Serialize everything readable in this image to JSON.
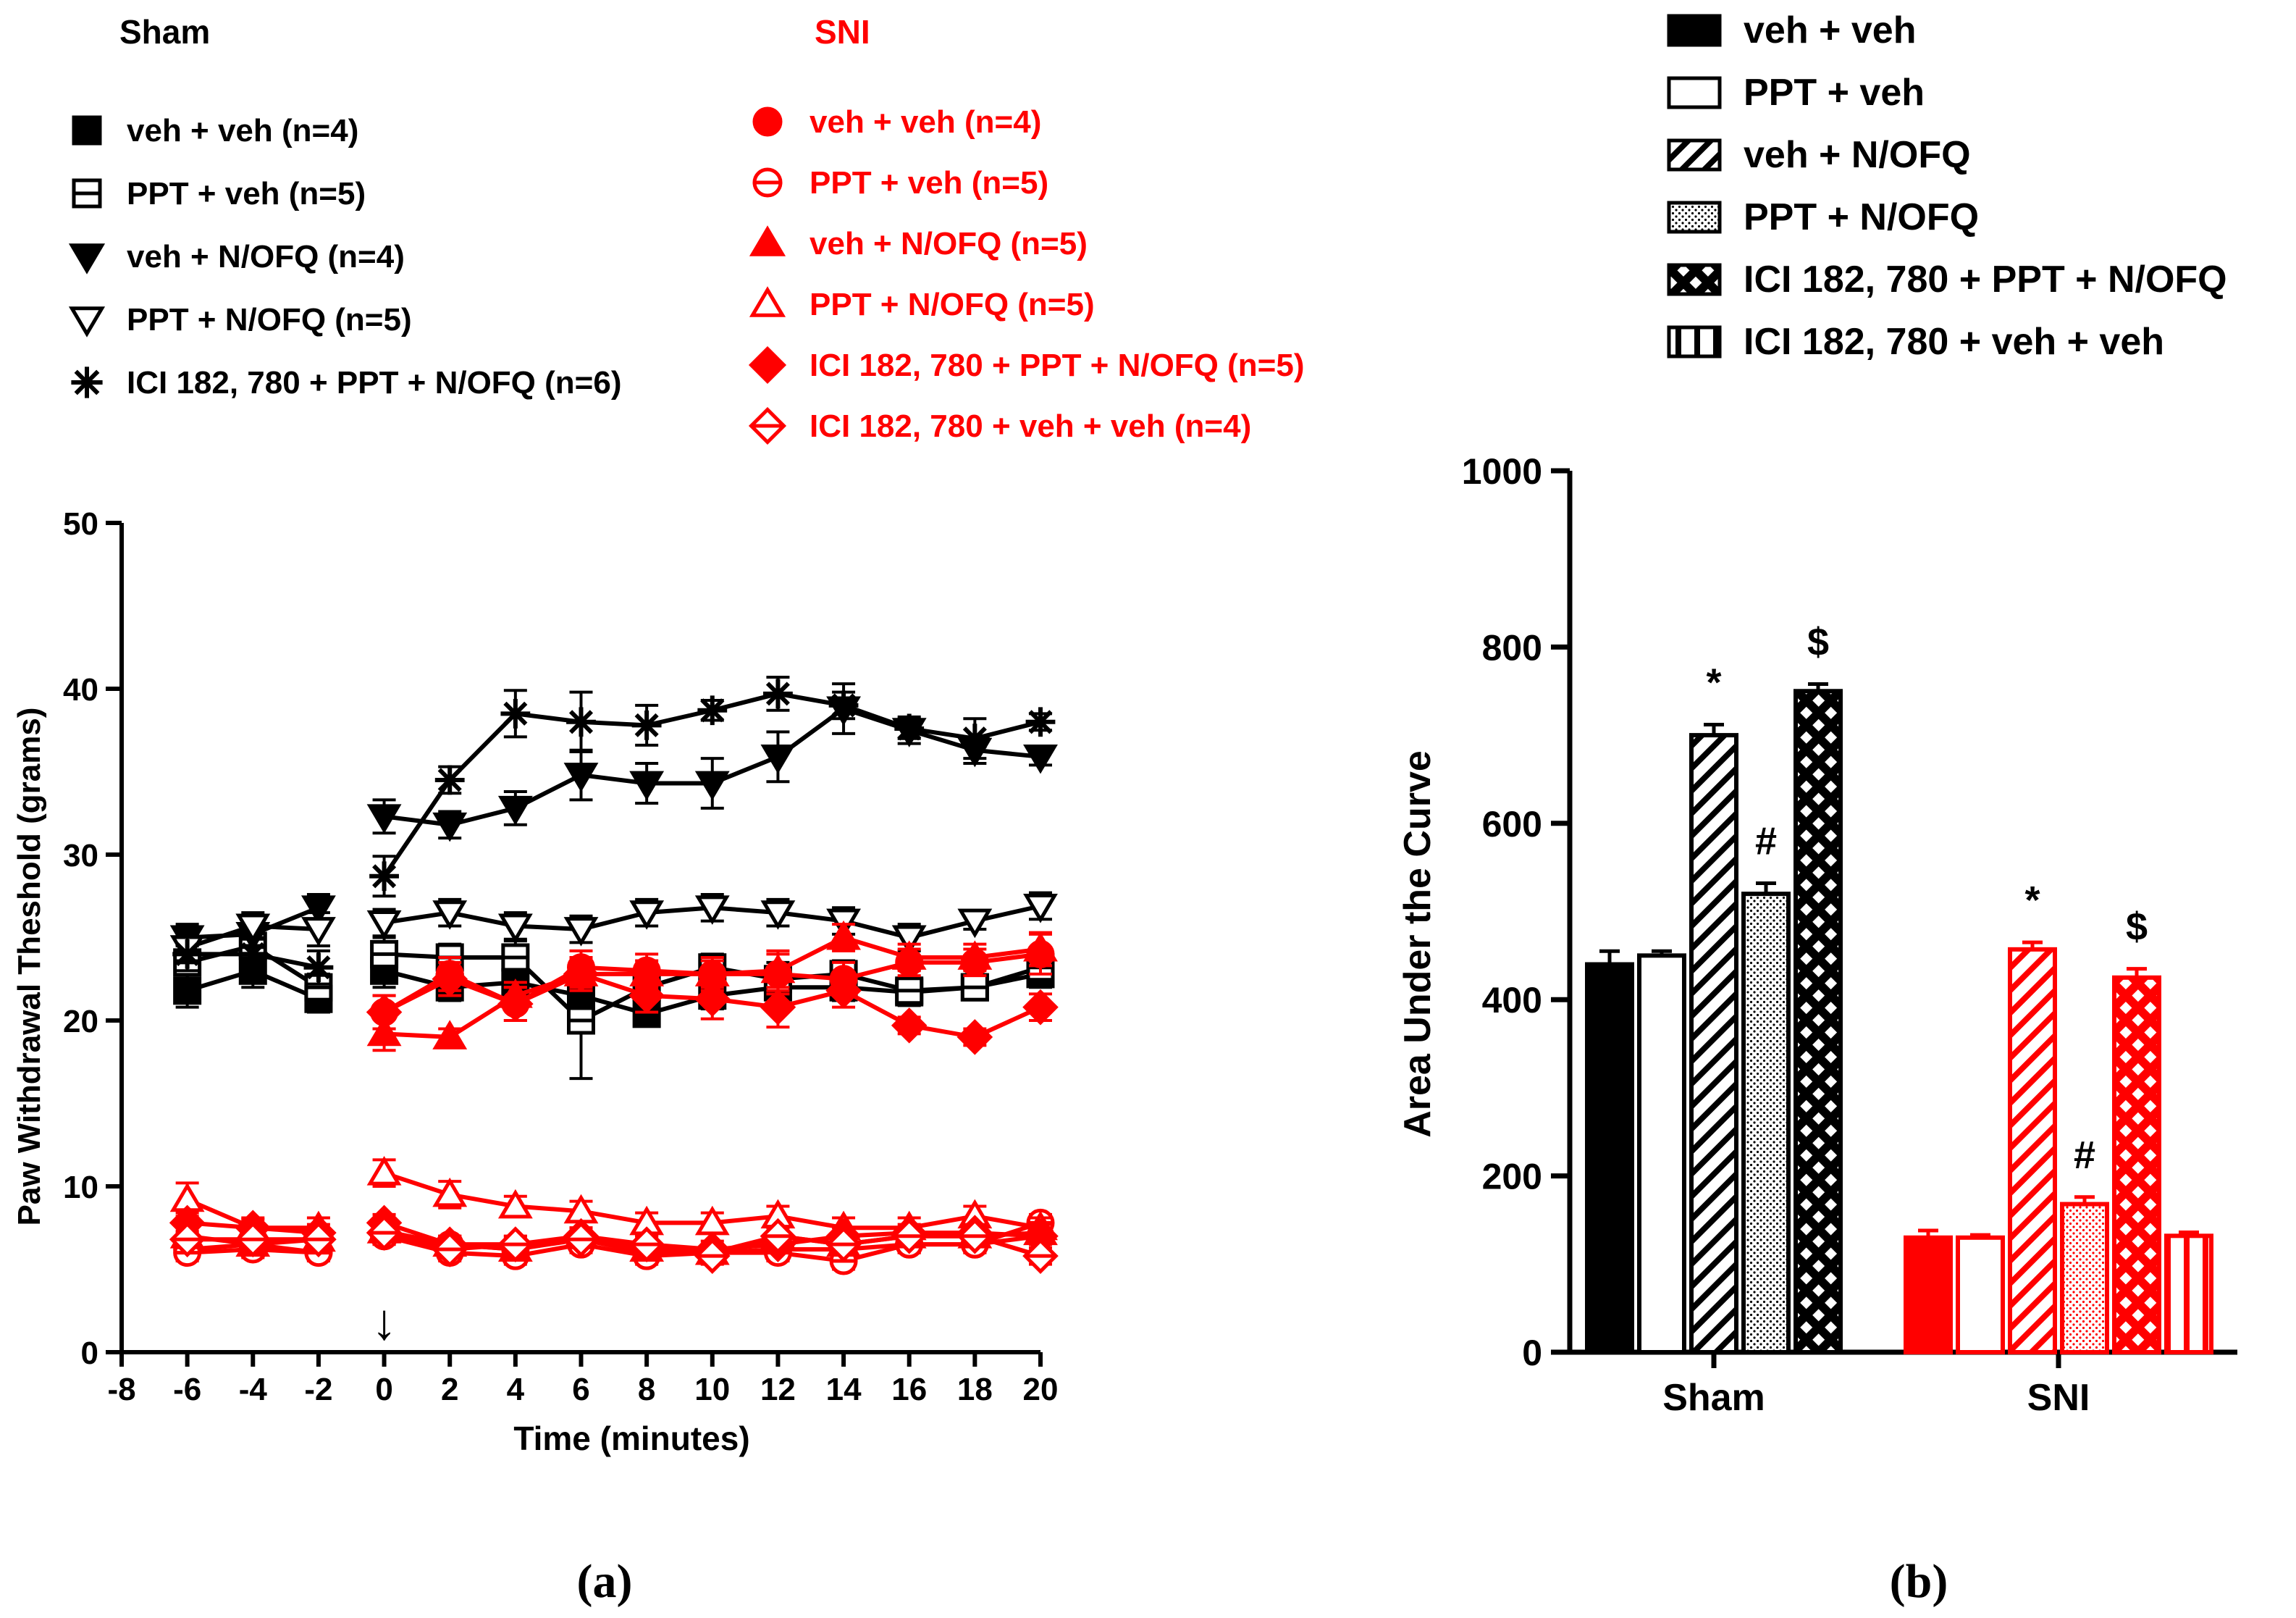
{
  "colors": {
    "sham": "#000000",
    "sni": "#ff0000",
    "background": "#ffffff"
  },
  "legend_a": {
    "sham_title": "Sham",
    "sni_title": "SNI",
    "sham_entries": [
      {
        "label": "veh + veh (n=4)",
        "marker": "filled-square-icon"
      },
      {
        "label": "PPT + veh (n=5)",
        "marker": "crossed-square-icon"
      },
      {
        "label": "veh + N/OFQ (n=4)",
        "marker": "filled-down-triangle-icon"
      },
      {
        "label": "PPT + N/OFQ (n=5)",
        "marker": "open-down-triangle-icon"
      },
      {
        "label": "ICI 182, 780 + PPT + N/OFQ (n=6)",
        "marker": "asterisk-icon"
      }
    ],
    "sni_entries": [
      {
        "label": "veh + veh (n=4)",
        "marker": "filled-circle-icon"
      },
      {
        "label": "PPT + veh (n=5)",
        "marker": "crossed-circle-icon"
      },
      {
        "label": "veh + N/OFQ (n=5)",
        "marker": "filled-up-triangle-icon"
      },
      {
        "label": "PPT + N/OFQ (n=5)",
        "marker": "open-up-triangle-icon"
      },
      {
        "label": "ICI 182, 780 + PPT + N/OFQ (n=5)",
        "marker": "filled-diamond-icon"
      },
      {
        "label": "ICI 182, 780 + veh + veh (n=4)",
        "marker": "crossed-diamond-icon"
      }
    ]
  },
  "legend_b": {
    "entries": [
      {
        "label": "veh + veh",
        "pattern": "solid"
      },
      {
        "label": "PPT + veh",
        "pattern": "open"
      },
      {
        "label": "veh + N/OFQ",
        "pattern": "diagonal-stripes"
      },
      {
        "label": "PPT + N/OFQ",
        "pattern": "dots"
      },
      {
        "label": "ICI 182, 780 + PPT + N/OFQ",
        "pattern": "crosshatch"
      },
      {
        "label": "ICI 182, 780 + veh + veh",
        "pattern": "vertical-stripes"
      }
    ]
  },
  "panel_labels": {
    "a": "(a)",
    "b": "(b)"
  },
  "chart_data": [
    {
      "id": "a",
      "type": "line",
      "title": "",
      "xlabel": "Time (minutes)",
      "ylabel": "Paw Withdrawal Theshold (grams)",
      "xlim": [
        -8,
        20
      ],
      "ylim": [
        0,
        50
      ],
      "xticks": [
        -8,
        -6,
        -4,
        -2,
        0,
        2,
        4,
        6,
        8,
        10,
        12,
        14,
        16,
        18,
        20
      ],
      "yticks": [
        0,
        10,
        20,
        30,
        40,
        50
      ],
      "annotation": {
        "text": "↓",
        "x": 0,
        "meaning": "injection arrow at time 0"
      },
      "segments_break_between": [
        -2,
        0
      ],
      "x": [
        -6,
        -4,
        -2,
        0,
        2,
        4,
        6,
        8,
        10,
        12,
        14,
        16,
        18,
        20
      ],
      "series": [
        {
          "name": "Sham veh + veh (n=4)",
          "group": "sham",
          "marker": "square-filled",
          "values": [
            21.8,
            23.0,
            21.3,
            23.0,
            22.0,
            22.3,
            21.5,
            20.4,
            21.5,
            22.0,
            22.0,
            21.7,
            22.0,
            22.8
          ],
          "errors": [
            1.0,
            1.0,
            0.8,
            1.0,
            0.8,
            1.0,
            0.8,
            0.5,
            0.8,
            0.8,
            0.8,
            0.8,
            0.5,
            0.8
          ]
        },
        {
          "name": "Sham PPT + veh (n=5)",
          "group": "sham",
          "marker": "square-crossed",
          "values": [
            23.5,
            24.5,
            22.0,
            24.0,
            23.8,
            23.8,
            20.0,
            22.0,
            23.2,
            22.5,
            22.8,
            21.8,
            22.0,
            23.2
          ],
          "errors": [
            1.0,
            1.0,
            0.8,
            1.0,
            0.8,
            1.0,
            3.5,
            0.8,
            0.8,
            1.0,
            0.8,
            0.8,
            0.5,
            0.8
          ]
        },
        {
          "name": "Sham veh + N/OFQ (n=4)",
          "group": "sham",
          "marker": "triangle-down-filled",
          "values": [
            25.0,
            25.2,
            26.8,
            32.3,
            31.8,
            32.8,
            34.8,
            34.3,
            34.3,
            35.9,
            38.8,
            37.5,
            36.3,
            35.9
          ],
          "errors": [
            0.8,
            0.8,
            0.8,
            1.0,
            0.8,
            1.0,
            1.5,
            1.2,
            1.5,
            1.5,
            1.5,
            0.8,
            0.8,
            0.5
          ]
        },
        {
          "name": "Sham PPT + N/OFQ (n=5)",
          "group": "sham",
          "marker": "triangle-down-open",
          "values": [
            24.4,
            25.7,
            25.5,
            25.9,
            26.5,
            25.7,
            25.5,
            26.5,
            26.8,
            26.5,
            26.0,
            25.0,
            26.0,
            26.9
          ],
          "errors": [
            0.8,
            0.8,
            1.0,
            0.8,
            0.8,
            0.8,
            0.8,
            0.8,
            0.8,
            0.8,
            0.8,
            0.8,
            0.5,
            0.8
          ]
        },
        {
          "name": "Sham ICI 182, 780 + PPT + N/OFQ (n=6)",
          "group": "sham",
          "marker": "asterisk",
          "values": [
            24.0,
            24.0,
            23.2,
            28.7,
            34.5,
            38.5,
            38.0,
            37.8,
            38.7,
            39.7,
            39.0,
            37.6,
            37.0,
            38.0
          ],
          "errors": [
            1.0,
            1.0,
            1.0,
            1.2,
            0.8,
            1.4,
            1.8,
            1.2,
            0.6,
            1.0,
            0.8,
            0.6,
            1.2,
            0.5
          ]
        },
        {
          "name": "SNI veh + veh (n=4)",
          "group": "sni",
          "marker": "circle-filled",
          "values": [
            6.2,
            6.5,
            6.0,
            7.0,
            6.5,
            6.2,
            6.8,
            6.0,
            6.0,
            6.2,
            6.2,
            6.5,
            6.5,
            7.0
          ],
          "errors": [
            0.5,
            0.5,
            0.5,
            0.5,
            0.5,
            0.5,
            0.5,
            0.5,
            0.5,
            0.5,
            0.5,
            0.5,
            0.5,
            0.5
          ]
        },
        {
          "name": "SNI PPT + veh (n=5)",
          "group": "sni",
          "marker": "circle-crossed",
          "values": [
            6.0,
            6.2,
            6.0,
            7.0,
            6.0,
            5.8,
            6.5,
            5.8,
            6.0,
            6.0,
            5.5,
            6.5,
            6.5,
            7.8
          ],
          "errors": [
            0.5,
            0.5,
            0.5,
            0.5,
            0.5,
            0.5,
            0.5,
            0.5,
            0.5,
            0.5,
            0.5,
            0.5,
            0.5,
            0.5
          ]
        },
        {
          "name": "SNI veh + N/OFQ (n=5)",
          "group": "sni",
          "marker": "triangle-up-filled",
          "values": [
            7.0,
            6.5,
            6.8,
            7.3,
            6.5,
            6.2,
            7.0,
            6.2,
            6.0,
            7.0,
            6.5,
            7.0,
            7.0,
            7.2
          ],
          "errors": [
            0.5,
            0.5,
            0.5,
            0.5,
            0.5,
            0.5,
            0.5,
            0.5,
            0.5,
            0.5,
            0.5,
            0.5,
            0.5,
            0.5
          ]
        },
        {
          "name": "SNI PPT + N/OFQ (n=5)",
          "group": "sni",
          "marker": "triangle-up-open",
          "values": [
            9.2,
            7.5,
            7.5,
            10.8,
            9.5,
            8.8,
            8.5,
            7.8,
            7.8,
            8.2,
            7.5,
            7.5,
            8.2,
            7.5
          ],
          "errors": [
            1.0,
            0.6,
            0.6,
            0.8,
            0.8,
            0.6,
            0.6,
            0.6,
            0.6,
            0.6,
            0.6,
            0.6,
            0.6,
            0.6
          ]
        },
        {
          "name": "SNI ICI 182, 780 + PPT + N/OFQ (n=5)",
          "group": "sni",
          "marker": "diamond-filled",
          "values": [
            7.8,
            7.5,
            7.2,
            7.8,
            6.5,
            6.5,
            7.0,
            6.5,
            6.2,
            6.5,
            7.0,
            7.2,
            7.2,
            7.0
          ],
          "errors": [
            0.6,
            0.5,
            0.5,
            0.5,
            0.5,
            0.5,
            0.5,
            0.5,
            0.5,
            0.5,
            0.5,
            0.5,
            0.5,
            0.5
          ]
        },
        {
          "name": "SNI ICI 182, 780 + veh + veh (n=4)",
          "group": "sni",
          "marker": "diamond-crossed",
          "values": [
            6.8,
            6.8,
            6.8,
            7.2,
            6.2,
            6.5,
            6.8,
            6.5,
            5.8,
            7.0,
            6.5,
            7.0,
            7.0,
            5.8
          ],
          "errors": [
            0.5,
            0.5,
            0.5,
            0.5,
            0.5,
            0.5,
            0.5,
            0.5,
            0.5,
            0.5,
            0.5,
            0.5,
            0.5,
            0.5
          ]
        },
        {
          "name": "SNI upper cluster A",
          "group": "sni",
          "marker": "circle-filled",
          "values": [
            null,
            null,
            null,
            20.5,
            22.8,
            21.0,
            23.2,
            23.0,
            22.8,
            22.8,
            22.5,
            23.5,
            23.5,
            24.0
          ],
          "errors": [
            0,
            0,
            0,
            1.0,
            1.0,
            1.0,
            1.0,
            1.0,
            1.0,
            1.2,
            1.0,
            0.8,
            0.8,
            1.2
          ]
        },
        {
          "name": "SNI upper cluster B",
          "group": "sni",
          "marker": "triangle-up-filled",
          "values": [
            null,
            null,
            null,
            19.2,
            19.0,
            21.5,
            22.8,
            22.8,
            22.8,
            23.0,
            25.0,
            23.8,
            23.8,
            24.3
          ],
          "errors": [
            0,
            0,
            0,
            1.0,
            0.5,
            0.8,
            0.8,
            0.8,
            0.8,
            1.2,
            0.8,
            0.8,
            0.8,
            1.0
          ]
        },
        {
          "name": "SNI upper cluster C",
          "group": "sni",
          "marker": "diamond-filled",
          "values": [
            null,
            null,
            null,
            20.5,
            22.5,
            21.0,
            22.8,
            21.5,
            21.3,
            20.8,
            21.8,
            19.7,
            19.0,
            20.8
          ],
          "errors": [
            0,
            0,
            0,
            1.0,
            1.0,
            1.0,
            1.0,
            1.0,
            1.2,
            1.2,
            1.0,
            0.5,
            0.5,
            0.8
          ]
        }
      ]
    },
    {
      "id": "b",
      "type": "bar",
      "title": "",
      "xlabel": "",
      "ylabel": "Area Under the Curve",
      "ylim": [
        0,
        1000
      ],
      "yticks": [
        0,
        200,
        400,
        600,
        800,
        1000
      ],
      "categories": [
        "Sham",
        "SNI"
      ],
      "series": [
        {
          "name": "veh + veh",
          "pattern": "solid",
          "values": [
            440,
            130
          ],
          "errors": [
            15,
            8
          ],
          "annotations": [
            "",
            ""
          ]
        },
        {
          "name": "PPT + veh",
          "pattern": "open",
          "values": [
            450,
            130
          ],
          "errors": [
            5,
            3
          ],
          "annotations": [
            "",
            ""
          ]
        },
        {
          "name": "veh + N/OFQ",
          "pattern": "diagonal-stripes",
          "values": [
            700,
            457
          ],
          "errors": [
            12,
            8
          ],
          "annotations": [
            "*",
            "*"
          ]
        },
        {
          "name": "PPT + N/OFQ",
          "pattern": "dots",
          "values": [
            520,
            168
          ],
          "errors": [
            12,
            8
          ],
          "annotations": [
            "#",
            "#"
          ]
        },
        {
          "name": "ICI 182, 780 + PPT + N/OFQ",
          "pattern": "crosshatch",
          "values": [
            750,
            425
          ],
          "errors": [
            8,
            10
          ],
          "annotations": [
            "$",
            "$"
          ]
        },
        {
          "name": "ICI 182, 780 + veh + veh",
          "pattern": "vertical-stripes",
          "values": [
            null,
            132
          ],
          "errors": [
            0,
            4
          ],
          "annotations": [
            "",
            ""
          ]
        }
      ]
    }
  ]
}
